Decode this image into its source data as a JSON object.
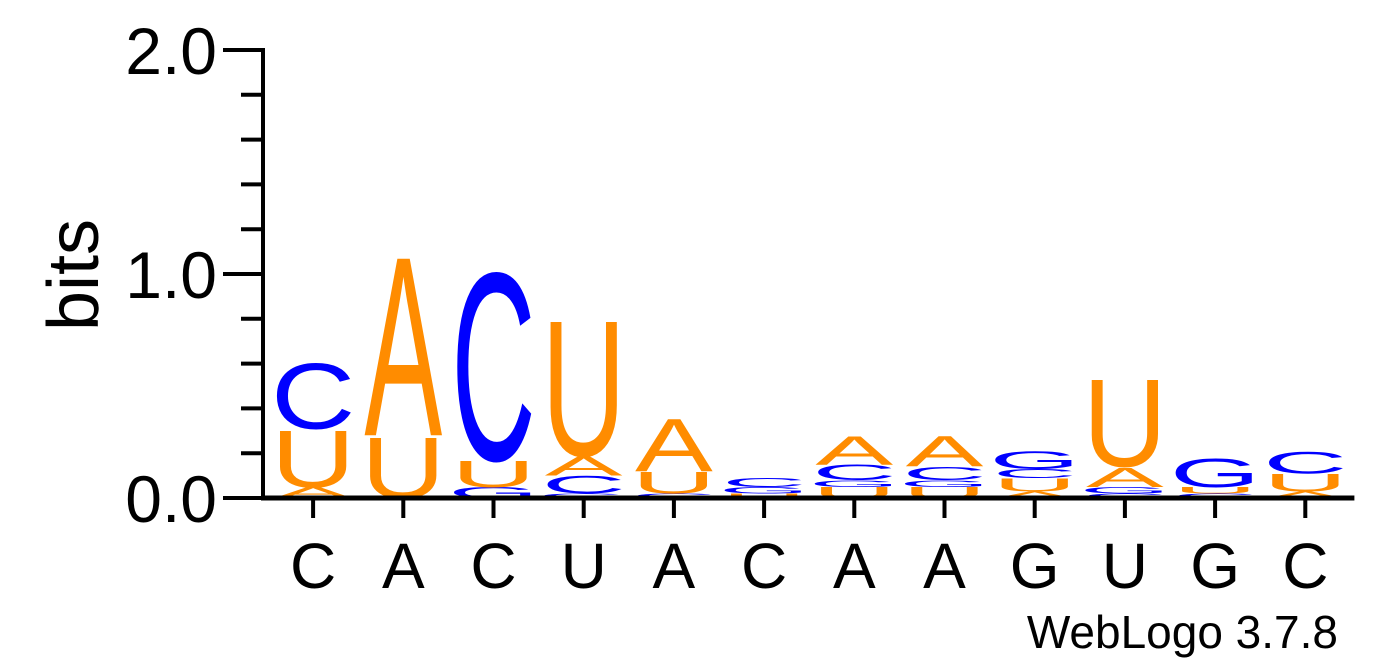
{
  "chart_data": {
    "type": "sequence-logo",
    "ylabel": "bits",
    "ylim": [
      0,
      2.0
    ],
    "yticks": [
      "0.0",
      "1.0",
      "2.0"
    ],
    "ytick_values": [
      0,
      1,
      2
    ],
    "minor_tick_step": 0.2,
    "colors": {
      "A": "#ff8c00",
      "U": "#ff8c00",
      "C": "#0000ff",
      "G": "#0000ff"
    },
    "positions": [
      {
        "label": "C",
        "letters": [
          {
            "l": "A",
            "h": 0.05
          },
          {
            "l": "U",
            "h": 0.26
          },
          {
            "l": "C",
            "h": 0.3
          }
        ]
      },
      {
        "label": "A",
        "letters": [
          {
            "l": "U",
            "h": 0.28
          },
          {
            "l": "A",
            "h": 0.82
          }
        ]
      },
      {
        "label": "C",
        "letters": [
          {
            "l": "G",
            "h": 0.05
          },
          {
            "l": "U",
            "h": 0.12
          },
          {
            "l": "C",
            "h": 0.86
          }
        ]
      },
      {
        "label": "U",
        "letters": [
          {
            "l": "G",
            "h": 0.02
          },
          {
            "l": "C",
            "h": 0.08
          },
          {
            "l": "A",
            "h": 0.09
          },
          {
            "l": "U",
            "h": 0.62
          }
        ]
      },
      {
        "label": "A",
        "letters": [
          {
            "l": "C",
            "h": 0.02
          },
          {
            "l": "U",
            "h": 0.1
          },
          {
            "l": "A",
            "h": 0.24
          }
        ]
      },
      {
        "label": "C",
        "letters": [
          {
            "l": "U",
            "h": 0.02
          },
          {
            "l": "G",
            "h": 0.03
          },
          {
            "l": "C",
            "h": 0.04
          }
        ]
      },
      {
        "label": "A",
        "letters": [
          {
            "l": "U",
            "h": 0.05
          },
          {
            "l": "G",
            "h": 0.03
          },
          {
            "l": "C",
            "h": 0.07
          },
          {
            "l": "A",
            "h": 0.13
          }
        ]
      },
      {
        "label": "A",
        "letters": [
          {
            "l": "U",
            "h": 0.05
          },
          {
            "l": "G",
            "h": 0.03
          },
          {
            "l": "C",
            "h": 0.06
          },
          {
            "l": "A",
            "h": 0.14
          }
        ]
      },
      {
        "label": "G",
        "letters": [
          {
            "l": "A",
            "h": 0.03
          },
          {
            "l": "U",
            "h": 0.06
          },
          {
            "l": "C",
            "h": 0.04
          },
          {
            "l": "G",
            "h": 0.08
          }
        ]
      },
      {
        "label": "U",
        "letters": [
          {
            "l": "C",
            "h": 0.02
          },
          {
            "l": "G",
            "h": 0.03
          },
          {
            "l": "A",
            "h": 0.09
          },
          {
            "l": "U",
            "h": 0.4
          }
        ]
      },
      {
        "label": "G",
        "letters": [
          {
            "l": "C",
            "h": 0.02
          },
          {
            "l": "U",
            "h": 0.03
          },
          {
            "l": "G",
            "h": 0.13
          }
        ]
      },
      {
        "label": "C",
        "letters": [
          {
            "l": "A",
            "h": 0.03
          },
          {
            "l": "U",
            "h": 0.08
          },
          {
            "l": "C",
            "h": 0.1
          }
        ]
      }
    ]
  },
  "footer": {
    "credit": "WebLogo 3.7.8"
  }
}
